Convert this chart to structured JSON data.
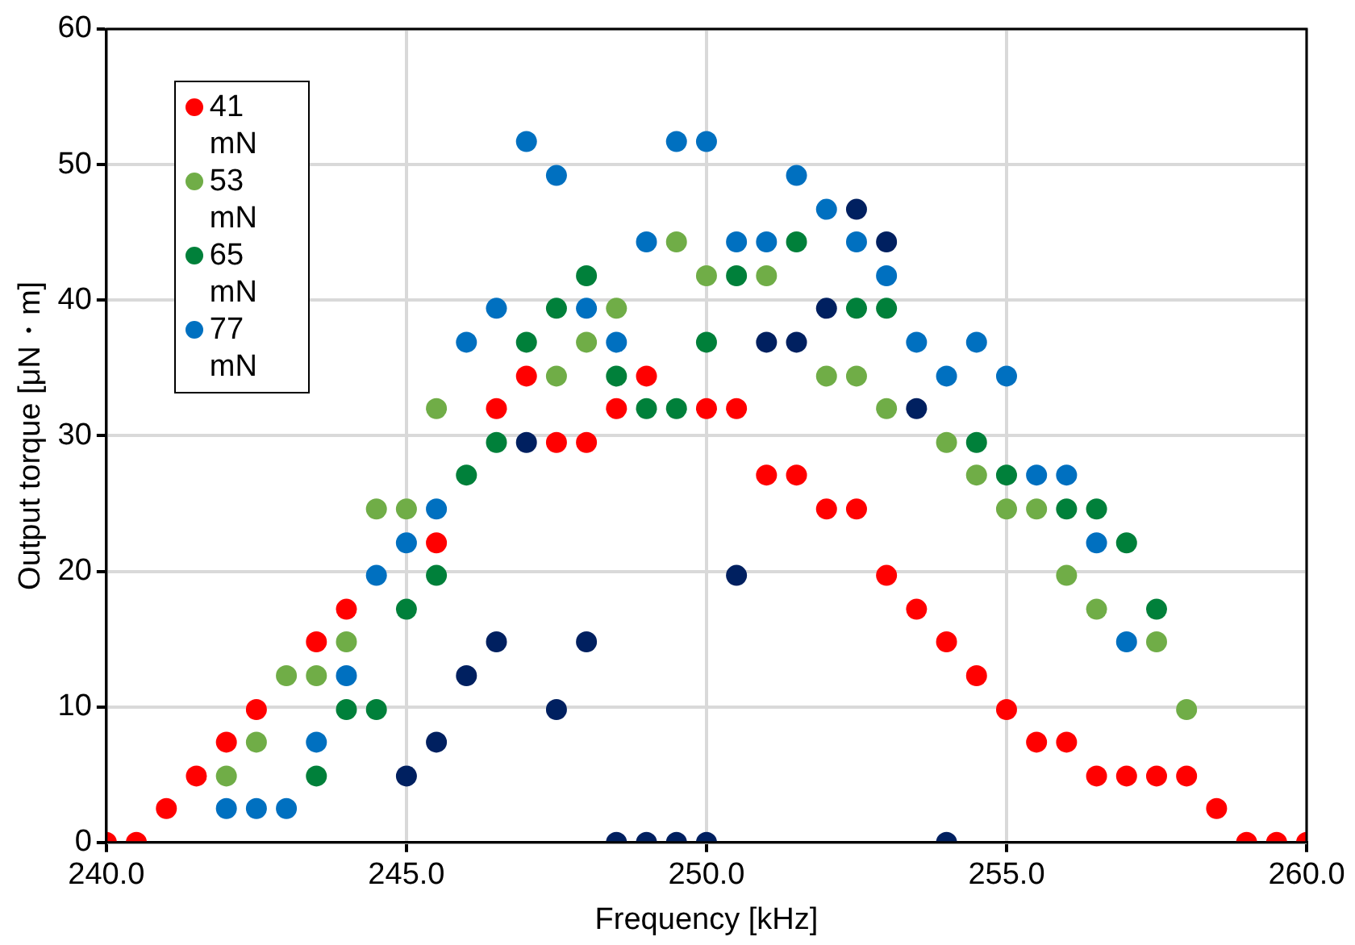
{
  "chart_data": {
    "type": "scatter",
    "xlabel": "Frequency [kHz]",
    "ylabel": "Output torque [μN・m]",
    "xlim": [
      240,
      260
    ],
    "xticks": [
      {
        "value": 240,
        "label": "240.0"
      },
      {
        "value": 245,
        "label": "245.0"
      },
      {
        "value": 250,
        "label": "250.0"
      },
      {
        "value": 255,
        "label": "255.0"
      },
      {
        "value": 260,
        "label": "260.0"
      }
    ],
    "ylim": [
      0,
      60
    ],
    "yticks": [
      0,
      10,
      20,
      30,
      40,
      50,
      60
    ],
    "grid": true,
    "legend": "top left",
    "marker": "circle",
    "series": [
      {
        "name": "41 mN",
        "color": "#ff0000",
        "x": [
          240,
          240.5,
          241,
          241.5,
          242,
          242.5,
          243,
          243.5,
          244,
          244.5,
          245,
          245.5,
          246,
          246.5,
          247,
          247.5,
          248,
          248.5,
          249,
          249.5,
          250,
          250.5,
          251,
          251.5,
          252,
          252.5,
          253,
          253.5,
          254,
          254.5,
          255,
          255.5,
          256,
          256.5,
          257,
          257.5,
          258,
          258.5,
          259,
          259.5,
          260
        ],
        "values": [
          0,
          0,
          2.5,
          4.9,
          7.4,
          9.8,
          null,
          14.8,
          17.2,
          null,
          null,
          22.1,
          null,
          32.0,
          34.4,
          29.5,
          29.5,
          32.0,
          34.4,
          null,
          32.0,
          32.0,
          27.1,
          27.1,
          24.6,
          24.6,
          19.7,
          17.2,
          14.8,
          12.3,
          9.8,
          7.4,
          7.4,
          4.9,
          4.9,
          4.9,
          4.9,
          2.5,
          0,
          0,
          0
        ]
      },
      {
        "name": "53 mN",
        "color": "#70ad47",
        "x": [
          242,
          242.5,
          243,
          243.5,
          244,
          244.5,
          245,
          245.5,
          247.5,
          248,
          248.5,
          249.5,
          250,
          251,
          252,
          252.5,
          253,
          254,
          254.5,
          255,
          255.5,
          256,
          256.5,
          257.5,
          258
        ],
        "values": [
          4.9,
          7.4,
          12.3,
          12.3,
          14.8,
          24.6,
          24.6,
          32.0,
          34.4,
          36.9,
          39.4,
          44.3,
          41.8,
          41.8,
          34.4,
          34.4,
          32.0,
          29.5,
          27.1,
          24.6,
          24.6,
          19.7,
          17.2,
          14.8,
          9.8
        ]
      },
      {
        "name": "65 mN",
        "color": "#00803a",
        "x": [
          243.5,
          244,
          244.5,
          245,
          245.5,
          246,
          246.5,
          247,
          247.5,
          248,
          248.5,
          249,
          249.5,
          250,
          250.5,
          251.5,
          252.5,
          253,
          254.5,
          255,
          256,
          256.5,
          257,
          257.5
        ],
        "values": [
          4.9,
          9.8,
          9.8,
          17.2,
          19.7,
          27.1,
          29.5,
          36.9,
          39.4,
          41.8,
          34.4,
          32.0,
          32.0,
          36.9,
          41.8,
          44.3,
          39.4,
          39.4,
          29.5,
          27.1,
          24.6,
          24.6,
          22.1,
          17.2
        ]
      },
      {
        "name": "77 mN",
        "color": "#0070c0",
        "x": [
          242,
          242.5,
          243,
          243.5,
          244,
          244.5,
          245,
          245.5,
          246,
          246.5,
          247,
          247.5,
          248,
          248.5,
          249,
          249.5,
          250,
          250.5,
          251,
          251.5,
          252,
          252.5,
          253,
          253.5,
          254,
          254.5,
          255,
          255.5,
          256,
          256.5,
          257
        ],
        "values": [
          2.5,
          2.5,
          2.5,
          7.4,
          12.3,
          19.7,
          22.1,
          24.6,
          36.9,
          39.4,
          51.7,
          49.2,
          39.4,
          36.9,
          44.3,
          51.7,
          51.7,
          44.3,
          44.3,
          49.2,
          46.7,
          44.3,
          41.8,
          36.9,
          34.4,
          36.9,
          34.4,
          27.1,
          27.1,
          22.1,
          14.8
        ]
      },
      {
        "color": "#002060",
        "x": [
          245,
          245.5,
          246,
          246.5,
          247,
          247.5,
          248,
          248.5,
          249,
          249.5,
          250,
          250.5,
          251,
          251.5,
          252,
          252.5,
          253,
          253.5,
          254
        ],
        "values": [
          4.9,
          7.4,
          12.3,
          14.8,
          29.5,
          9.8,
          14.8,
          0,
          0,
          0,
          0,
          19.7,
          36.9,
          36.9,
          39.4,
          46.7,
          44.3,
          32.0,
          0
        ]
      }
    ]
  }
}
